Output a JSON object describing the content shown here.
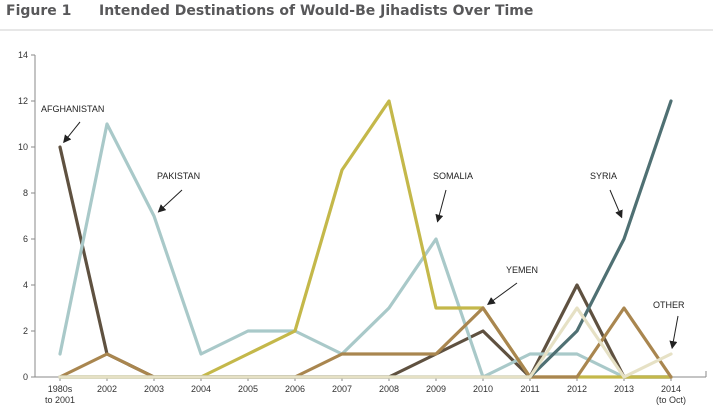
{
  "figure": {
    "label": "Figure 1",
    "title": "Intended Destinations of Would-Be Jihadists Over Time"
  },
  "chart_data": {
    "type": "line",
    "title": "Intended Destinations of Would-Be Jihadists Over Time",
    "xlabel": "",
    "ylabel": "",
    "categories": [
      "1980s\nto 2001",
      "2002",
      "2003",
      "2004",
      "2005",
      "2006",
      "2007",
      "2008",
      "2009",
      "2010",
      "2011",
      "2012",
      "2013",
      "2014\n(to Oct)"
    ],
    "ylim": [
      0,
      14
    ],
    "yticks": [
      0,
      2,
      4,
      6,
      8,
      10,
      12,
      14
    ],
    "grid": false,
    "series": [
      {
        "name": "AFGHANISTAN",
        "color": "#5f5140",
        "values": [
          10,
          1,
          0,
          0,
          0,
          0,
          0,
          0,
          1,
          2,
          0,
          4,
          0,
          0
        ]
      },
      {
        "name": "PAKISTAN",
        "color": "#a9c9c9",
        "values": [
          1,
          11,
          7,
          1,
          2,
          2,
          1,
          3,
          6,
          0,
          1,
          1,
          0,
          0
        ]
      },
      {
        "name": "SOMALIA",
        "color": "#c4b84a",
        "values": [
          0,
          0,
          0,
          0,
          1,
          2,
          9,
          12,
          3,
          3,
          0,
          0,
          0,
          0
        ]
      },
      {
        "name": "YEMEN",
        "color": "#a9864f",
        "values": [
          0,
          1,
          0,
          0,
          0,
          0,
          1,
          1,
          1,
          3,
          0,
          0,
          3,
          0
        ]
      },
      {
        "name": "SYRIA",
        "color": "#4f7073",
        "values": [
          0,
          0,
          0,
          0,
          0,
          0,
          0,
          0,
          0,
          0,
          0,
          2,
          6,
          12
        ]
      },
      {
        "name": "OTHER",
        "color": "#e6e1c5",
        "values": [
          0,
          0,
          0,
          0,
          0,
          0,
          0,
          0,
          0,
          0,
          0,
          3,
          0,
          1
        ]
      }
    ],
    "annotations": [
      {
        "text": "AFGHANISTAN",
        "series": "AFGHANISTAN",
        "points_to": {
          "category": "1980s\nto 2001",
          "value": 10
        }
      },
      {
        "text": "PAKISTAN",
        "series": "PAKISTAN",
        "points_to": {
          "category": "2003",
          "value": 7
        }
      },
      {
        "text": "SOMALIA",
        "series": "SOMALIA",
        "points_to": {
          "category": "2009",
          "value": 6.5
        }
      },
      {
        "text": "YEMEN",
        "series": "YEMEN",
        "points_to": {
          "category": "2010",
          "value": 3
        }
      },
      {
        "text": "SYRIA",
        "series": "SYRIA",
        "points_to": {
          "category": "2013",
          "value": 6.7
        }
      },
      {
        "text": "OTHER",
        "series": "OTHER",
        "points_to": {
          "category": "2014\n(to Oct)",
          "value": 1
        }
      }
    ]
  }
}
